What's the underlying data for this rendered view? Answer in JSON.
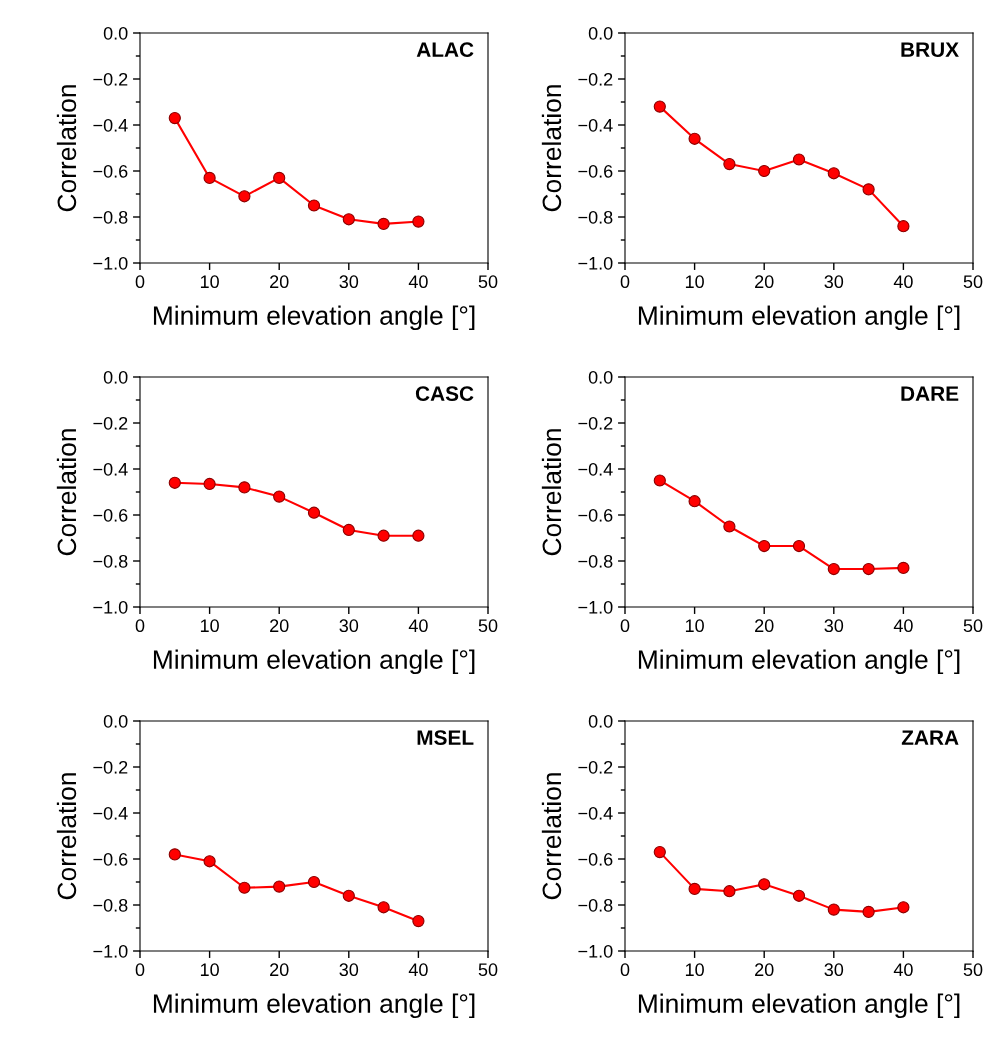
{
  "chart_data": [
    {
      "type": "line",
      "x": [
        5,
        10,
        15,
        20,
        25,
        30,
        35,
        40
      ],
      "series": [
        {
          "color": "#ff0000",
          "values": [
            -0.37,
            -0.63,
            -0.71,
            -0.63,
            -0.75,
            -0.81,
            -0.83,
            -0.82
          ]
        }
      ],
      "annotations": [
        "ALAC"
      ],
      "xlabel": "Minimum elevation angle [°]",
      "ylabel": "Correlation",
      "xlim": [
        0,
        50
      ],
      "xticks": [
        0,
        10,
        20,
        30,
        40,
        50
      ],
      "ylim": [
        -1.0,
        0.0
      ],
      "yticks": [
        {
          "value": -1.0,
          "label": "−1.0"
        },
        {
          "value": -0.9,
          "label": null
        },
        {
          "value": -0.8,
          "label": "−0.8"
        },
        {
          "value": -0.7,
          "label": null
        },
        {
          "value": -0.6,
          "label": "−0.6"
        },
        {
          "value": -0.5,
          "label": null
        },
        {
          "value": -0.4,
          "label": "−0.4"
        },
        {
          "value": -0.3,
          "label": null
        },
        {
          "value": -0.2,
          "label": "−0.2"
        },
        {
          "value": -0.1,
          "label": null
        },
        {
          "value": 0.0,
          "label": "0.0"
        }
      ],
      "marker": "circle",
      "line_style": "solid",
      "grid": false,
      "legend": false
    },
    {
      "type": "line",
      "x": [
        5,
        10,
        15,
        20,
        25,
        30,
        35,
        40
      ],
      "series": [
        {
          "color": "#ff0000",
          "values": [
            -0.32,
            -0.46,
            -0.57,
            -0.6,
            -0.55,
            -0.61,
            -0.68,
            -0.84
          ]
        }
      ],
      "annotations": [
        "BRUX"
      ],
      "xlabel": "Minimum elevation angle [°]",
      "ylabel": "Correlation",
      "xlim": [
        0,
        50
      ],
      "xticks": [
        0,
        10,
        20,
        30,
        40,
        50
      ],
      "ylim": [
        -1.0,
        0.0
      ],
      "yticks": [
        {
          "value": -1.0,
          "label": "−1.0"
        },
        {
          "value": -0.9,
          "label": null
        },
        {
          "value": -0.8,
          "label": "−0.8"
        },
        {
          "value": -0.7,
          "label": null
        },
        {
          "value": -0.6,
          "label": "−0.6"
        },
        {
          "value": -0.5,
          "label": null
        },
        {
          "value": -0.4,
          "label": "−0.4"
        },
        {
          "value": -0.3,
          "label": null
        },
        {
          "value": -0.2,
          "label": "−0.2"
        },
        {
          "value": -0.1,
          "label": null
        },
        {
          "value": 0.0,
          "label": "0.0"
        }
      ],
      "marker": "circle",
      "line_style": "solid",
      "grid": false,
      "legend": false
    },
    {
      "type": "line",
      "x": [
        5,
        10,
        15,
        20,
        25,
        30,
        35,
        40
      ],
      "series": [
        {
          "color": "#ff0000",
          "values": [
            -0.46,
            -0.465,
            -0.48,
            -0.52,
            -0.59,
            -0.665,
            -0.69,
            -0.69
          ]
        }
      ],
      "annotations": [
        "CASC"
      ],
      "xlabel": "Minimum elevation angle [°]",
      "ylabel": "Correlation",
      "xlim": [
        0,
        50
      ],
      "xticks": [
        0,
        10,
        20,
        30,
        40,
        50
      ],
      "ylim": [
        -1.0,
        0.0
      ],
      "yticks": [
        {
          "value": -1.0,
          "label": "−1.0"
        },
        {
          "value": -0.9,
          "label": null
        },
        {
          "value": -0.8,
          "label": "−0.8"
        },
        {
          "value": -0.7,
          "label": null
        },
        {
          "value": -0.6,
          "label": "−0.6"
        },
        {
          "value": -0.5,
          "label": null
        },
        {
          "value": -0.4,
          "label": "−0.4"
        },
        {
          "value": -0.3,
          "label": null
        },
        {
          "value": -0.2,
          "label": "−0.2"
        },
        {
          "value": -0.1,
          "label": null
        },
        {
          "value": 0.0,
          "label": "0.0"
        }
      ],
      "marker": "circle",
      "line_style": "solid",
      "grid": false,
      "legend": false
    },
    {
      "type": "line",
      "x": [
        5,
        10,
        15,
        20,
        25,
        30,
        35,
        40
      ],
      "series": [
        {
          "color": "#ff0000",
          "values": [
            -0.45,
            -0.54,
            -0.65,
            -0.735,
            -0.735,
            -0.835,
            -0.835,
            -0.83
          ]
        }
      ],
      "annotations": [
        "DARE"
      ],
      "xlabel": "Minimum elevation angle [°]",
      "ylabel": "Correlation",
      "xlim": [
        0,
        50
      ],
      "xticks": [
        0,
        10,
        20,
        30,
        40,
        50
      ],
      "ylim": [
        -1.0,
        0.0
      ],
      "yticks": [
        {
          "value": -1.0,
          "label": "−1.0"
        },
        {
          "value": -0.9,
          "label": null
        },
        {
          "value": -0.8,
          "label": "−0.8"
        },
        {
          "value": -0.7,
          "label": null
        },
        {
          "value": -0.6,
          "label": "−0.6"
        },
        {
          "value": -0.5,
          "label": null
        },
        {
          "value": -0.4,
          "label": "−0.4"
        },
        {
          "value": -0.3,
          "label": null
        },
        {
          "value": -0.2,
          "label": "−0.2"
        },
        {
          "value": -0.1,
          "label": null
        },
        {
          "value": 0.0,
          "label": "0.0"
        }
      ],
      "marker": "circle",
      "line_style": "solid",
      "grid": false,
      "legend": false
    },
    {
      "type": "line",
      "x": [
        5,
        10,
        15,
        20,
        25,
        30,
        35,
        40
      ],
      "series": [
        {
          "color": "#ff0000",
          "values": [
            -0.58,
            -0.61,
            -0.725,
            -0.72,
            -0.7,
            -0.76,
            -0.81,
            -0.87
          ]
        }
      ],
      "annotations": [
        "MSEL"
      ],
      "xlabel": "Minimum elevation angle [°]",
      "ylabel": "Correlation",
      "xlim": [
        0,
        50
      ],
      "xticks": [
        0,
        10,
        20,
        30,
        40,
        50
      ],
      "ylim": [
        -1.0,
        0.0
      ],
      "yticks": [
        {
          "value": -1.0,
          "label": "−1.0"
        },
        {
          "value": -0.9,
          "label": null
        },
        {
          "value": -0.8,
          "label": "−0.8"
        },
        {
          "value": -0.7,
          "label": null
        },
        {
          "value": -0.6,
          "label": "−0.6"
        },
        {
          "value": -0.5,
          "label": null
        },
        {
          "value": -0.4,
          "label": "−0.4"
        },
        {
          "value": -0.3,
          "label": null
        },
        {
          "value": -0.2,
          "label": "−0.2"
        },
        {
          "value": -0.1,
          "label": null
        },
        {
          "value": 0.0,
          "label": "0.0"
        }
      ],
      "marker": "circle",
      "line_style": "solid",
      "grid": false,
      "legend": false
    },
    {
      "type": "line",
      "x": [
        5,
        10,
        15,
        20,
        25,
        30,
        35,
        40
      ],
      "series": [
        {
          "color": "#ff0000",
          "values": [
            -0.57,
            -0.73,
            -0.74,
            -0.71,
            -0.76,
            -0.82,
            -0.83,
            -0.81
          ]
        }
      ],
      "annotations": [
        "ZARA"
      ],
      "xlabel": "Minimum elevation angle [°]",
      "ylabel": "Correlation",
      "xlim": [
        0,
        50
      ],
      "xticks": [
        0,
        10,
        20,
        30,
        40,
        50
      ],
      "ylim": [
        -1.0,
        0.0
      ],
      "yticks": [
        {
          "value": -1.0,
          "label": "−1.0"
        },
        {
          "value": -0.9,
          "label": null
        },
        {
          "value": -0.8,
          "label": "−0.8"
        },
        {
          "value": -0.7,
          "label": null
        },
        {
          "value": -0.6,
          "label": "−0.6"
        },
        {
          "value": -0.5,
          "label": null
        },
        {
          "value": -0.4,
          "label": "−0.4"
        },
        {
          "value": -0.3,
          "label": null
        },
        {
          "value": -0.2,
          "label": "−0.2"
        },
        {
          "value": -0.1,
          "label": null
        },
        {
          "value": 0.0,
          "label": "0.0"
        }
      ],
      "marker": "circle",
      "line_style": "solid",
      "grid": false,
      "legend": false
    }
  ]
}
